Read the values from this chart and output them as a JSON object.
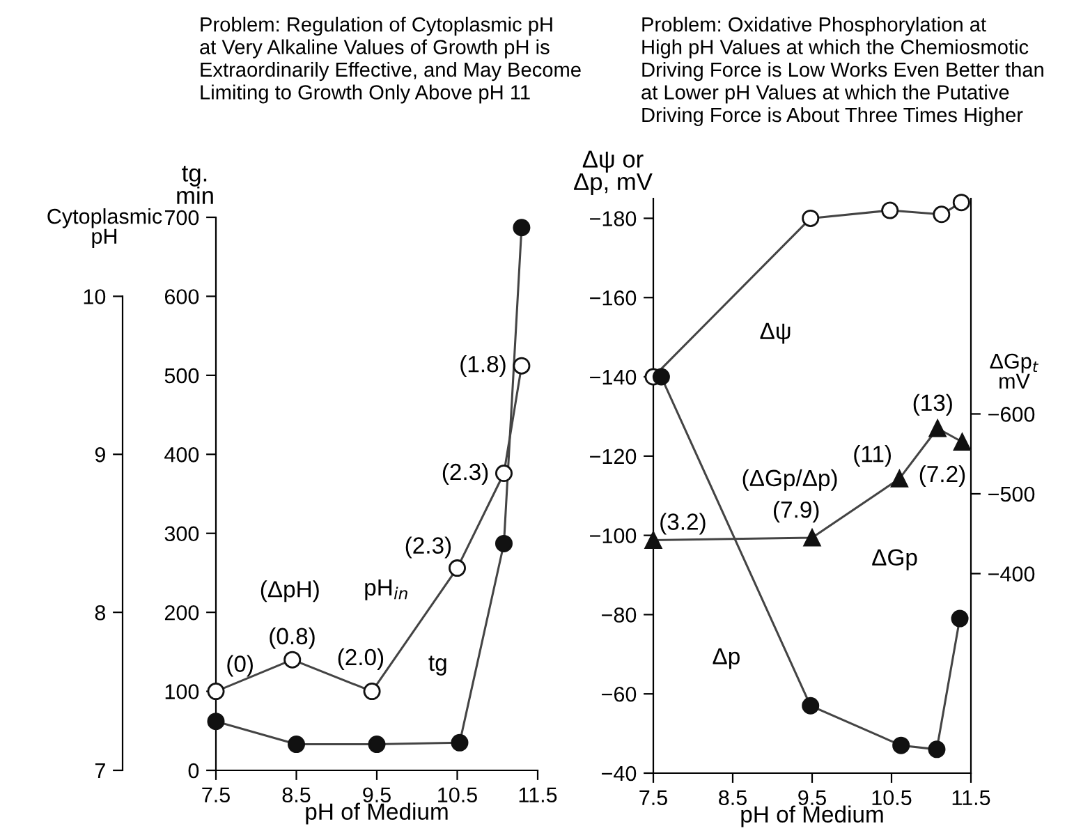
{
  "chart_data": [
    {
      "type": "line",
      "title": "Problem: Regulation of Cytoplasmic pH\nat Very Alkaline Values of Growth pH is\nExtraordinarily Effective, and May Become\nLimiting to Growth Only Above pH 11",
      "xlabel": "pH of Medium",
      "ylabel": "tg.\nmin",
      "y2label": "Cytoplasmic\npH",
      "xlim": [
        7.5,
        11.5
      ],
      "xticks": [
        7.5,
        8.5,
        9.5,
        10.5,
        11.5
      ],
      "ylim": [
        0,
        700
      ],
      "yticks": [
        0,
        100,
        200,
        300,
        400,
        500,
        600,
        700
      ],
      "y2lim": [
        7,
        10.5
      ],
      "y2ticks": [
        7,
        8,
        9,
        10
      ],
      "grid": false,
      "marker": "circle",
      "series": [
        {
          "color": "#ffffff",
          "axis": "y2",
          "x": [
            7.5,
            8.45,
            9.44,
            10.5,
            11.08,
            11.3
          ],
          "values": [
            7.5,
            7.7,
            7.5,
            8.28,
            8.88,
            9.56
          ]
        },
        {
          "color": "#111111",
          "x": [
            7.5,
            8.5,
            9.5,
            10.53,
            11.08,
            11.3
          ],
          "values": [
            62,
            33,
            33,
            35,
            287,
            687
          ]
        }
      ],
      "annotations": [
        "(0)",
        "(ΔpH)",
        "(0.8)",
        "(2.0)",
        "(2.3)",
        "(2.3)",
        "(1.8)",
        "pH$_{in}$",
        "tg"
      ]
    },
    {
      "type": "line",
      "title": "Problem: Oxidative Phosphorylation at\nHigh pH Values at which the Chemiosmotic\nDriving Force is Low Works Even Better than\nat Lower pH Values at which the Putative\nDriving Force is About Three Times Higher",
      "xlabel": "pH of Medium",
      "ylabel": "Δψ or\nΔp, mV",
      "y2label": "ΔGp$_{t}$\nmV",
      "xlim": [
        7.5,
        11.5
      ],
      "xticks": [
        7.5,
        8.5,
        9.5,
        10.5,
        11.5
      ],
      "ylim": [
        -40,
        -185
      ],
      "yticks": [
        {
          "value": -180,
          "label": "−180"
        },
        {
          "value": -160,
          "label": "−160"
        },
        {
          "value": -140,
          "label": "−140"
        },
        {
          "value": -120,
          "label": "−120"
        },
        {
          "value": -100,
          "label": "−100"
        },
        {
          "value": -80,
          "label": "−80"
        },
        {
          "value": -60,
          "label": "−60"
        },
        {
          "value": -40,
          "label": "−40"
        }
      ],
      "y2lim": [
        -150,
        -870
      ],
      "y2ticks": [
        {
          "value": -600,
          "label": "−600"
        },
        {
          "value": -500,
          "label": "−500"
        },
        {
          "value": -400,
          "label": "−400"
        }
      ],
      "grid": false,
      "marker": "circle",
      "series": [
        {
          "color": "#ffffff",
          "x": [
            7.5,
            9.48,
            10.48,
            11.13,
            11.38
          ],
          "values": [
            -140,
            -180,
            -182,
            -181,
            -184
          ]
        },
        {
          "color": "#111111",
          "x": [
            7.6,
            9.48,
            10.62,
            11.07,
            11.36
          ],
          "values": [
            -140,
            -57,
            -47,
            -46,
            -79
          ]
        },
        {
          "color": "#111111",
          "axis": "y2",
          "marker": "triangle",
          "x": [
            7.5,
            9.5,
            10.6,
            11.08,
            11.39
          ],
          "values": [
            -442,
            -445,
            -519,
            -582,
            -565
          ]
        }
      ],
      "annotations": [
        "Δψ",
        "(3.2)",
        "(ΔGp/Δp)",
        "(7.9)",
        "(11)",
        "(13)",
        "(7.2)",
        "ΔGp",
        "Δp"
      ]
    }
  ]
}
